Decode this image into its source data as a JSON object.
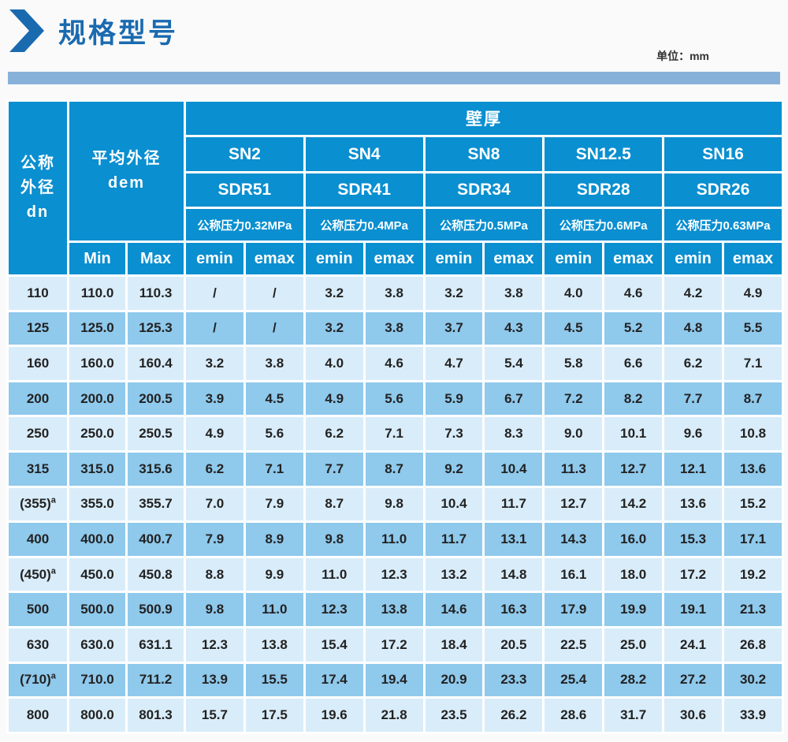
{
  "page": {
    "title": "规格型号",
    "unit_label": "单位：mm"
  },
  "colors": {
    "title_blue": "#1a6ab0",
    "bar_blue": "#88b1da",
    "header_blue": "#0a8fd0",
    "row_light": "#d9ecf9",
    "row_dark": "#8fc9ec",
    "cell_text": "#222222"
  },
  "table": {
    "dn_header_line1": "公称",
    "dn_header_line2": "外径",
    "dn_header_line3": "dn",
    "dem_header_line1": "平均外径",
    "dem_header_line2": "dem",
    "wall_thickness_header": "壁厚",
    "min_label": "Min",
    "max_label": "Max",
    "emin_label": "emin",
    "emax_label": "emax",
    "sn_groups": [
      {
        "sn": "SN2",
        "sdr": "SDR51",
        "pressure": "公称压力0.32MPa"
      },
      {
        "sn": "SN4",
        "sdr": "SDR41",
        "pressure": "公称压力0.4MPa"
      },
      {
        "sn": "SN8",
        "sdr": "SDR34",
        "pressure": "公称压力0.5MPa"
      },
      {
        "sn": "SN12.5",
        "sdr": "SDR28",
        "pressure": "公称压力0.6MPa"
      },
      {
        "sn": "SN16",
        "sdr": "SDR26",
        "pressure": "公称压力0.63MPa"
      }
    ],
    "rows": [
      {
        "dn": "110",
        "sup": "",
        "min": "110.0",
        "max": "110.3",
        "values": [
          "/",
          "/",
          "3.2",
          "3.8",
          "3.2",
          "3.8",
          "4.0",
          "4.6",
          "4.2",
          "4.9"
        ]
      },
      {
        "dn": "125",
        "sup": "",
        "min": "125.0",
        "max": "125.3",
        "values": [
          "/",
          "/",
          "3.2",
          "3.8",
          "3.7",
          "4.3",
          "4.5",
          "5.2",
          "4.8",
          "5.5"
        ]
      },
      {
        "dn": "160",
        "sup": "",
        "min": "160.0",
        "max": "160.4",
        "values": [
          "3.2",
          "3.8",
          "4.0",
          "4.6",
          "4.7",
          "5.4",
          "5.8",
          "6.6",
          "6.2",
          "7.1"
        ]
      },
      {
        "dn": "200",
        "sup": "",
        "min": "200.0",
        "max": "200.5",
        "values": [
          "3.9",
          "4.5",
          "4.9",
          "5.6",
          "5.9",
          "6.7",
          "7.2",
          "8.2",
          "7.7",
          "8.7"
        ]
      },
      {
        "dn": "250",
        "sup": "",
        "min": "250.0",
        "max": "250.5",
        "values": [
          "4.9",
          "5.6",
          "6.2",
          "7.1",
          "7.3",
          "8.3",
          "9.0",
          "10.1",
          "9.6",
          "10.8"
        ]
      },
      {
        "dn": "315",
        "sup": "",
        "min": "315.0",
        "max": "315.6",
        "values": [
          "6.2",
          "7.1",
          "7.7",
          "8.7",
          "9.2",
          "10.4",
          "11.3",
          "12.7",
          "12.1",
          "13.6"
        ]
      },
      {
        "dn": "(355)",
        "sup": "a",
        "min": "355.0",
        "max": "355.7",
        "values": [
          "7.0",
          "7.9",
          "8.7",
          "9.8",
          "10.4",
          "11.7",
          "12.7",
          "14.2",
          "13.6",
          "15.2"
        ]
      },
      {
        "dn": "400",
        "sup": "",
        "min": "400.0",
        "max": "400.7",
        "values": [
          "7.9",
          "8.9",
          "9.8",
          "11.0",
          "11.7",
          "13.1",
          "14.3",
          "16.0",
          "15.3",
          "17.1"
        ]
      },
      {
        "dn": "(450)",
        "sup": "a",
        "min": "450.0",
        "max": "450.8",
        "values": [
          "8.8",
          "9.9",
          "11.0",
          "12.3",
          "13.2",
          "14.8",
          "16.1",
          "18.0",
          "17.2",
          "19.2"
        ]
      },
      {
        "dn": "500",
        "sup": "",
        "min": "500.0",
        "max": "500.9",
        "values": [
          "9.8",
          "11.0",
          "12.3",
          "13.8",
          "14.6",
          "16.3",
          "17.9",
          "19.9",
          "19.1",
          "21.3"
        ]
      },
      {
        "dn": "630",
        "sup": "",
        "min": "630.0",
        "max": "631.1",
        "values": [
          "12.3",
          "13.8",
          "15.4",
          "17.2",
          "18.4",
          "20.5",
          "22.5",
          "25.0",
          "24.1",
          "26.8"
        ]
      },
      {
        "dn": "(710)",
        "sup": "a",
        "min": "710.0",
        "max": "711.2",
        "values": [
          "13.9",
          "15.5",
          "17.4",
          "19.4",
          "20.9",
          "23.3",
          "25.4",
          "28.2",
          "27.2",
          "30.2"
        ]
      },
      {
        "dn": "800",
        "sup": "",
        "min": "800.0",
        "max": "801.3",
        "values": [
          "15.7",
          "17.5",
          "19.6",
          "21.8",
          "23.5",
          "26.2",
          "28.6",
          "31.7",
          "30.6",
          "33.9"
        ]
      }
    ]
  }
}
